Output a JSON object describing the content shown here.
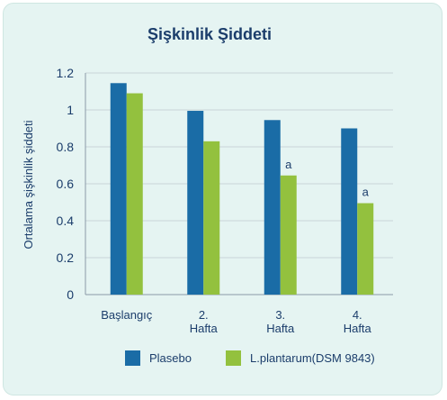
{
  "chart_data": {
    "type": "bar",
    "title": "Şişkinlik Şiddeti",
    "xlabel": "",
    "ylabel": "Ortalama şişkinlik şiddeti",
    "ylim": [
      0,
      1.2
    ],
    "yticks": [
      "0",
      "0.2",
      "0.4",
      "0.6",
      "0.8",
      "1",
      "1.2"
    ],
    "grid": true,
    "legend_position": "bottom",
    "categories": [
      [
        "Başlangıç"
      ],
      [
        "2.",
        "Hafta"
      ],
      [
        "3.",
        "Hafta"
      ],
      [
        "4.",
        "Hafta"
      ]
    ],
    "series": [
      {
        "name": "Plasebo",
        "color": "#1a6ca6",
        "values": [
          1.145,
          0.995,
          0.945,
          0.9
        ],
        "annotations": [
          "",
          "",
          "",
          ""
        ]
      },
      {
        "name": "L.plantarum(DSM 9843)",
        "color": "#93c13e",
        "values": [
          1.09,
          0.83,
          0.645,
          0.495
        ],
        "annotations": [
          "",
          "",
          "a",
          "a"
        ]
      }
    ]
  }
}
